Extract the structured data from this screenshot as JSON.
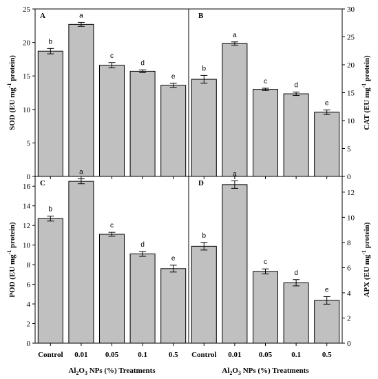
{
  "colors": {
    "bar_fill": "#c0c0c0",
    "bar_stroke": "#000000",
    "axis": "#000000"
  },
  "xlabel_parts": {
    "pre": "Al",
    "sub1": "2",
    "mid": "O",
    "sub2": "3",
    "post": " NPs (%) Treatments"
  },
  "chart_data": [
    {
      "type": "bar",
      "panel": "A",
      "ylabel_parts": {
        "main": "SOD (EU mg",
        "sup": "-1",
        "post": " protein)"
      },
      "y_axis_side": "left",
      "ylim": [
        0,
        25
      ],
      "yticks": [
        0,
        5,
        10,
        15,
        20,
        25
      ],
      "categories": [
        "Control",
        "0.01",
        "0.05",
        "0.1",
        "0.5"
      ],
      "values": [
        18.7,
        22.7,
        16.6,
        15.7,
        13.6
      ],
      "errors": [
        0.4,
        0.3,
        0.4,
        0.2,
        0.3
      ],
      "labels": [
        "b",
        "a",
        "c",
        "d",
        "e"
      ]
    },
    {
      "type": "bar",
      "panel": "B",
      "ylabel_parts": {
        "main": "CAT (EU mg",
        "sup": "-1",
        "post": " protein)"
      },
      "y_axis_side": "right",
      "ylim": [
        0,
        30
      ],
      "yticks": [
        0,
        5,
        10,
        15,
        20,
        25,
        30
      ],
      "categories": [
        "Control",
        "0.01",
        "0.05",
        "0.1",
        "0.5"
      ],
      "values": [
        17.4,
        23.8,
        15.6,
        14.8,
        11.5
      ],
      "errors": [
        0.7,
        0.3,
        0.2,
        0.3,
        0.4
      ],
      "labels": [
        "b",
        "a",
        "c",
        "d",
        "e"
      ]
    },
    {
      "type": "bar",
      "panel": "C",
      "ylabel_parts": {
        "main": "POD (EU mg",
        "sup": "-1",
        "post": " protein)"
      },
      "y_axis_side": "left",
      "ylim": [
        0,
        17
      ],
      "yticks": [
        0,
        2,
        4,
        6,
        8,
        10,
        12,
        14,
        16
      ],
      "categories": [
        "Control",
        "0.01",
        "0.05",
        "0.1",
        "0.5"
      ],
      "values": [
        12.7,
        16.5,
        11.1,
        9.1,
        7.6
      ],
      "errors": [
        0.25,
        0.25,
        0.2,
        0.25,
        0.35
      ],
      "labels": [
        "b",
        "a",
        "c",
        "d",
        "e"
      ]
    },
    {
      "type": "bar",
      "panel": "D",
      "ylabel_parts": {
        "main": "APX (EU mg",
        "sup": "-1",
        "post": " protein)"
      },
      "y_axis_side": "right",
      "ylim": [
        0,
        13.25
      ],
      "yticks": [
        0,
        2,
        4,
        6,
        8,
        10,
        12
      ],
      "categories": [
        "Control",
        "0.01",
        "0.05",
        "0.1",
        "0.5"
      ],
      "values": [
        7.7,
        12.6,
        5.7,
        4.8,
        3.4
      ],
      "errors": [
        0.3,
        0.3,
        0.2,
        0.25,
        0.3
      ],
      "labels": [
        "b",
        "a",
        "c",
        "d",
        "e"
      ]
    }
  ]
}
